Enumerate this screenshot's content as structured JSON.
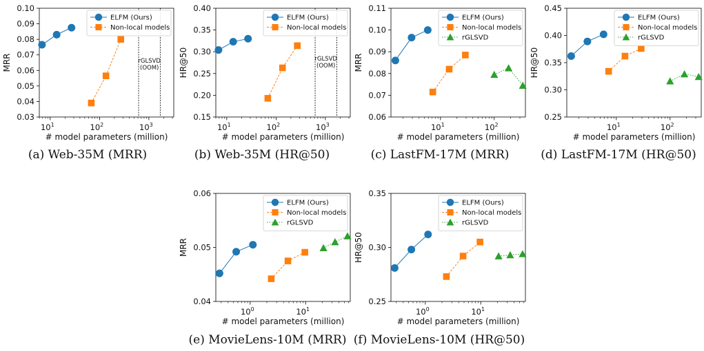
{
  "colors": {
    "elfm": "#1f77b4",
    "nonlocal": "#ff7f0e",
    "rglsvd": "#2ca02c",
    "axis": "#000000",
    "oom_line": "#000000"
  },
  "chart_data": [
    {
      "type": "line",
      "caption": "(a) Web-35M (MRR)",
      "xlabel": "# model parameters (million)",
      "ylabel": "MRR",
      "xscale": "log",
      "xlim": [
        6,
        3200
      ],
      "ylim": [
        0.03,
        0.1
      ],
      "yticks": [
        "0.03",
        "0.04",
        "0.05",
        "0.06",
        "0.07",
        "0.08",
        "0.09",
        "0.10"
      ],
      "xticks": [
        {
          "v": 10,
          "e": "1"
        },
        {
          "v": 100,
          "e": "2"
        },
        {
          "v": 1000,
          "e": "3"
        }
      ],
      "legend": "top-right",
      "series": [
        {
          "name": "ELFM (Ours)",
          "marker": "circle",
          "color": "#1f77b4",
          "dash": "",
          "x": [
            6.8,
            13.5,
            27
          ],
          "y": [
            0.0765,
            0.083,
            0.0875
          ]
        },
        {
          "name": "Non-local models",
          "marker": "square",
          "color": "#ff7f0e",
          "dash": "3,2",
          "x": [
            68,
            135,
            270
          ],
          "y": [
            0.039,
            0.0565,
            0.08
          ]
        }
      ],
      "oom": {
        "x_lines": [
          620,
          1700
        ],
        "label1": "rGLSVD",
        "label2": "(OOM)",
        "y_label": 0.065
      }
    },
    {
      "type": "line",
      "caption": "(b) Web-35M (HR@50)",
      "xlabel": "# model parameters (million)",
      "ylabel": "HR@50",
      "xscale": "log",
      "xlim": [
        6,
        3200
      ],
      "ylim": [
        0.15,
        0.4
      ],
      "yticks": [
        "0.15",
        "0.20",
        "0.25",
        "0.30",
        "0.35",
        "0.40"
      ],
      "xticks": [
        {
          "v": 10,
          "e": "1"
        },
        {
          "v": 100,
          "e": "2"
        },
        {
          "v": 1000,
          "e": "3"
        }
      ],
      "legend": "top-right",
      "series": [
        {
          "name": "ELFM (Ours)",
          "marker": "circle",
          "color": "#1f77b4",
          "dash": "",
          "x": [
            6.8,
            13.5,
            27
          ],
          "y": [
            0.304,
            0.323,
            0.33
          ]
        },
        {
          "name": "Non-local models",
          "marker": "square",
          "color": "#ff7f0e",
          "dash": "3,2",
          "x": [
            68,
            135,
            270
          ],
          "y": [
            0.193,
            0.263,
            0.314
          ]
        }
      ],
      "oom": {
        "x_lines": [
          620,
          1700
        ],
        "label1": "rGLSVD",
        "label2": "(OOM)",
        "y_label": 0.28
      }
    },
    {
      "type": "line",
      "caption": "(c) LastFM-17M (MRR)",
      "xlabel": "# model parameters (million)",
      "ylabel": "MRR",
      "xscale": "log",
      "xlim": [
        1.2,
        380
      ],
      "ylim": [
        0.06,
        0.11
      ],
      "yticks": [
        "0.06",
        "0.07",
        "0.08",
        "0.09",
        "0.10",
        "0.11"
      ],
      "xticks": [
        {
          "v": 10,
          "e": "1"
        },
        {
          "v": 100,
          "e": "2"
        }
      ],
      "legend": "top-right",
      "series": [
        {
          "name": "ELFM (Ours)",
          "marker": "circle",
          "color": "#1f77b4",
          "dash": "",
          "x": [
            1.45,
            2.9,
            5.8
          ],
          "y": [
            0.086,
            0.0965,
            0.1
          ]
        },
        {
          "name": "Non-local models",
          "marker": "square",
          "color": "#ff7f0e",
          "dash": "3,2",
          "x": [
            7.2,
            14.5,
            29
          ],
          "y": [
            0.0715,
            0.082,
            0.0885
          ]
        },
        {
          "name": "rGLSVD",
          "marker": "triangle",
          "color": "#2ca02c",
          "dash": "1.5,2",
          "x": [
            100,
            185,
            340
          ],
          "y": [
            0.0795,
            0.0825,
            0.0745
          ]
        }
      ]
    },
    {
      "type": "line",
      "caption": "(d) LastFM-17M (HR@50)",
      "xlabel": "# model parameters (million)",
      "ylabel": "HR@50",
      "xscale": "log",
      "xlim": [
        1.2,
        380
      ],
      "ylim": [
        0.25,
        0.45
      ],
      "yticks": [
        "0.25",
        "0.30",
        "0.35",
        "0.40",
        "0.45"
      ],
      "xticks": [
        {
          "v": 10,
          "e": "1"
        },
        {
          "v": 100,
          "e": "2"
        }
      ],
      "legend": "top-right",
      "series": [
        {
          "name": "ELFM (Ours)",
          "marker": "circle",
          "color": "#1f77b4",
          "dash": "",
          "x": [
            1.45,
            2.9,
            5.8
          ],
          "y": [
            0.362,
            0.389,
            0.402
          ]
        },
        {
          "name": "Non-local models",
          "marker": "square",
          "color": "#ff7f0e",
          "dash": "3,2",
          "x": [
            7.2,
            14.5,
            29
          ],
          "y": [
            0.334,
            0.362,
            0.376
          ]
        },
        {
          "name": "rGLSVD",
          "marker": "triangle",
          "color": "#2ca02c",
          "dash": "1.5,2",
          "x": [
            100,
            185,
            340
          ],
          "y": [
            0.316,
            0.329,
            0.324
          ]
        }
      ]
    },
    {
      "type": "line",
      "caption": "(e) MovieLens-10M (MRR)",
      "xlabel": "# model parameters (million)",
      "ylabel": "MRR",
      "xscale": "log",
      "xlim": [
        0.24,
        64
      ],
      "ylim": [
        0.04,
        0.06
      ],
      "yticks": [
        "0.04",
        "0.05",
        "0.06"
      ],
      "xticks": [
        {
          "v": 1,
          "e": "0"
        },
        {
          "v": 10,
          "e": "1"
        }
      ],
      "legend": "top-right",
      "series": [
        {
          "name": "ELFM (Ours)",
          "marker": "circle",
          "color": "#1f77b4",
          "dash": "",
          "x": [
            0.28,
            0.56,
            1.12
          ],
          "y": [
            0.0452,
            0.0492,
            0.0505
          ]
        },
        {
          "name": "Non-local models",
          "marker": "square",
          "color": "#ff7f0e",
          "dash": "3,2",
          "x": [
            2.4,
            4.8,
            9.7
          ],
          "y": [
            0.0442,
            0.0475,
            0.0491
          ]
        },
        {
          "name": "rGLSVD",
          "marker": "triangle",
          "color": "#2ca02c",
          "dash": "1.5,2",
          "x": [
            21,
            34,
            57
          ],
          "y": [
            0.0499,
            0.051,
            0.0521
          ]
        }
      ]
    },
    {
      "type": "line",
      "caption": "(f) MovieLens-10M (HR@50)",
      "xlabel": "# model parameters (million)",
      "ylabel": "HR@50",
      "xscale": "log",
      "xlim": [
        0.24,
        64
      ],
      "ylim": [
        0.25,
        0.35
      ],
      "yticks": [
        "0.25",
        "0.30",
        "0.35"
      ],
      "xticks": [
        {
          "v": 1,
          "e": "0"
        },
        {
          "v": 10,
          "e": "1"
        }
      ],
      "legend": "top-right",
      "series": [
        {
          "name": "ELFM (Ours)",
          "marker": "circle",
          "color": "#1f77b4",
          "dash": "",
          "x": [
            0.28,
            0.56,
            1.12
          ],
          "y": [
            0.281,
            0.298,
            0.312
          ]
        },
        {
          "name": "Non-local models",
          "marker": "square",
          "color": "#ff7f0e",
          "dash": "3,2",
          "x": [
            2.4,
            4.8,
            9.7
          ],
          "y": [
            0.273,
            0.292,
            0.305
          ]
        },
        {
          "name": "rGLSVD",
          "marker": "triangle",
          "color": "#2ca02c",
          "dash": "1.5,2",
          "x": [
            21,
            34,
            57
          ],
          "y": [
            0.292,
            0.293,
            0.294
          ]
        }
      ]
    }
  ]
}
